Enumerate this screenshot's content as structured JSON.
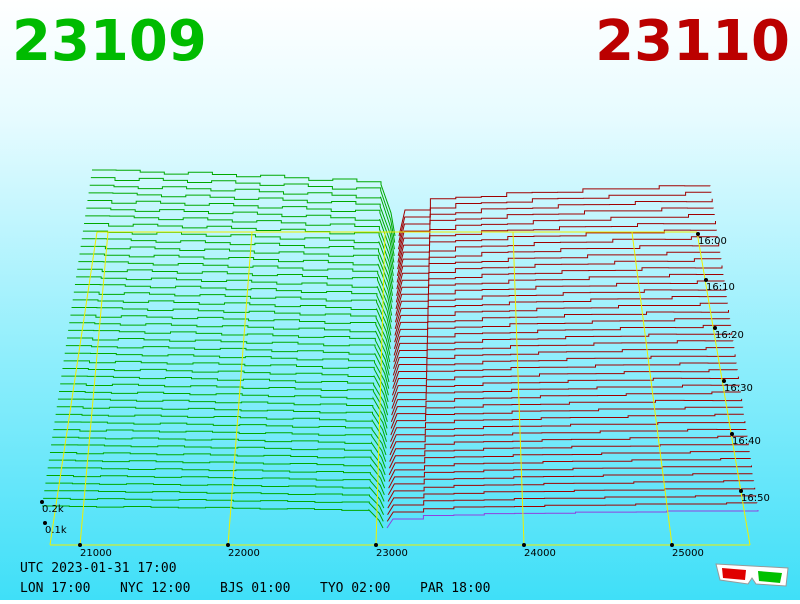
{
  "header": {
    "bid": "23109",
    "ask": "23110"
  },
  "axes": {
    "price_ticks": [
      "21000",
      "22000",
      "23000",
      "24000",
      "25000"
    ],
    "time_ticks": [
      "16:00",
      "16:10",
      "16:20",
      "16:30",
      "16:40",
      "16:50"
    ],
    "depth_ticks": [
      "0.2k",
      "0.1k"
    ]
  },
  "footer": {
    "utc": "UTC 2023-01-31 17:00",
    "zones": [
      "LON 17:00",
      "NYC 12:00",
      "BJS 01:00",
      "TYO 02:00",
      "PAR 18:00"
    ]
  }
}
